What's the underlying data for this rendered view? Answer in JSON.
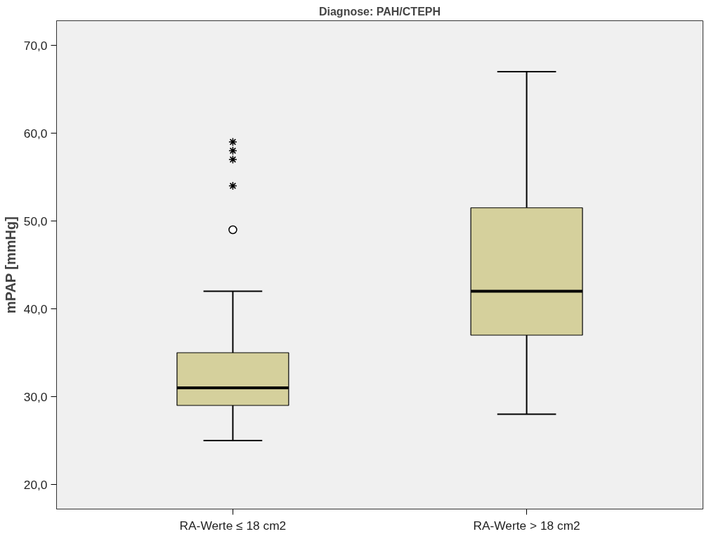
{
  "chart_data": {
    "type": "box",
    "title": "Diagnose: PAH/CTEPH",
    "ylabel": "mPAP [mmHg]",
    "categories": [
      "RA-Werte ≤ 18 cm2",
      "RA-Werte > 18 cm2"
    ],
    "boxes": [
      {
        "low": 25,
        "q1": 29,
        "median": 31,
        "q3": 35,
        "high": 42,
        "outliers": [
          49,
          54,
          57,
          58,
          59
        ]
      },
      {
        "low": 28,
        "q1": 37,
        "median": 42,
        "q3": 51.5,
        "high": 67
      }
    ],
    "color": "#d5d09c",
    "ylim": [
      17.2,
      72.8
    ],
    "yticks": [
      {
        "value": 20,
        "label": "20,0"
      },
      {
        "value": 30,
        "label": "30,0"
      },
      {
        "value": 40,
        "label": "40,0"
      },
      {
        "value": 50,
        "label": "50,0"
      },
      {
        "value": 60,
        "label": "60,0"
      },
      {
        "value": 70,
        "label": "70,0"
      }
    ],
    "grid": false
  }
}
